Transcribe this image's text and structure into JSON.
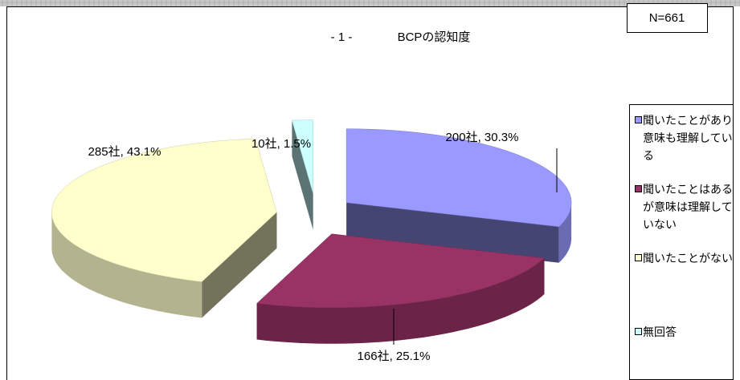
{
  "chart_data": {
    "type": "pie3d",
    "page_number": "- 1 -",
    "title": "BCPの認知度",
    "annotation": "N=661",
    "categories": [
      "聞いたことがあり意味も理解している",
      "聞いたことはあるが意味は理解していない",
      "聞いたことがない",
      "無回答"
    ],
    "values": [
      30.3,
      25.1,
      43.1,
      1.5
    ],
    "value_labels": [
      "200社, 30.3%",
      "166社, 25.1%",
      "285社, 43.1%",
      "10社, 1.5%"
    ],
    "colors": [
      "#9999ff",
      "#993366",
      "#ffffcc",
      "#ccffff"
    ],
    "legend": "right"
  }
}
